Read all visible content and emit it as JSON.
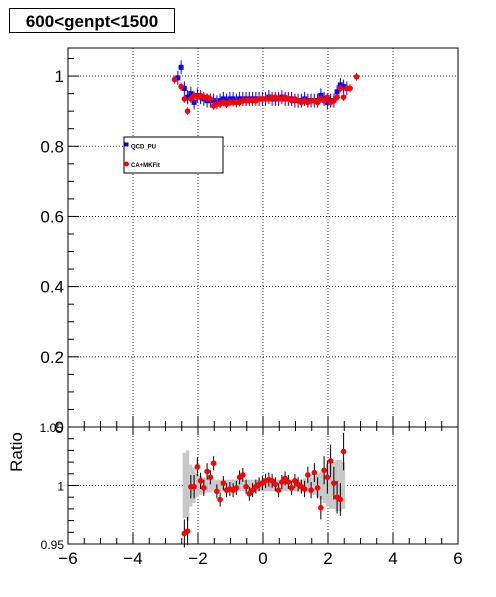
{
  "title": "600<genpt<1500",
  "legend": {
    "entries": [
      {
        "label": "QCD_PU",
        "color": "#0000ff",
        "marker": "square"
      },
      {
        "label": "CA+MKFit",
        "color": "#ff0000",
        "marker": "circle"
      }
    ]
  },
  "chart_data": [
    {
      "type": "scatter",
      "title": "600<genpt<1500",
      "xlabel": "",
      "ylabel": "",
      "xlim": [
        -6,
        6
      ],
      "ylim": [
        0,
        1.08
      ],
      "grid": true,
      "legend_placement": "upper-left",
      "yticks": [
        "0",
        "0.2",
        "0.4",
        "0.6",
        "0.8",
        "1"
      ],
      "series": [
        {
          "name": "QCD_PU",
          "color": "#0000ff",
          "marker": "square",
          "points": [
            {
              "x": -2.62,
              "y": 0.995
            },
            {
              "x": -2.52,
              "y": 1.025
            },
            {
              "x": -2.42,
              "y": 0.965
            },
            {
              "x": -2.32,
              "y": 0.94
            },
            {
              "x": -2.22,
              "y": 0.95
            },
            {
              "x": -2.12,
              "y": 0.925
            },
            {
              "x": -2.02,
              "y": 0.945
            },
            {
              "x": -1.92,
              "y": 0.94
            },
            {
              "x": -1.82,
              "y": 0.935
            },
            {
              "x": -1.72,
              "y": 0.93
            },
            {
              "x": -1.62,
              "y": 0.93
            },
            {
              "x": -1.52,
              "y": 0.93
            },
            {
              "x": -1.42,
              "y": 0.925
            },
            {
              "x": -1.32,
              "y": 0.93
            },
            {
              "x": -1.22,
              "y": 0.935
            },
            {
              "x": -1.12,
              "y": 0.93
            },
            {
              "x": -1.02,
              "y": 0.935
            },
            {
              "x": -0.92,
              "y": 0.935
            },
            {
              "x": -0.82,
              "y": 0.93
            },
            {
              "x": -0.72,
              "y": 0.935
            },
            {
              "x": -0.62,
              "y": 0.935
            },
            {
              "x": -0.52,
              "y": 0.935
            },
            {
              "x": -0.42,
              "y": 0.935
            },
            {
              "x": -0.32,
              "y": 0.935
            },
            {
              "x": -0.22,
              "y": 0.935
            },
            {
              "x": -0.12,
              "y": 0.935
            },
            {
              "x": -0.02,
              "y": 0.935
            },
            {
              "x": 0.08,
              "y": 0.935
            },
            {
              "x": 0.18,
              "y": 0.94
            },
            {
              "x": 0.28,
              "y": 0.935
            },
            {
              "x": 0.38,
              "y": 0.935
            },
            {
              "x": 0.48,
              "y": 0.935
            },
            {
              "x": 0.58,
              "y": 0.94
            },
            {
              "x": 0.68,
              "y": 0.935
            },
            {
              "x": 0.78,
              "y": 0.935
            },
            {
              "x": 0.88,
              "y": 0.935
            },
            {
              "x": 0.98,
              "y": 0.93
            },
            {
              "x": 1.08,
              "y": 0.93
            },
            {
              "x": 1.18,
              "y": 0.93
            },
            {
              "x": 1.28,
              "y": 0.935
            },
            {
              "x": 1.38,
              "y": 0.93
            },
            {
              "x": 1.48,
              "y": 0.93
            },
            {
              "x": 1.58,
              "y": 0.93
            },
            {
              "x": 1.68,
              "y": 0.93
            },
            {
              "x": 1.78,
              "y": 0.945
            },
            {
              "x": 1.88,
              "y": 0.935
            },
            {
              "x": 1.98,
              "y": 0.925
            },
            {
              "x": 2.08,
              "y": 0.93
            },
            {
              "x": 2.18,
              "y": 0.93
            },
            {
              "x": 2.28,
              "y": 0.955
            },
            {
              "x": 2.38,
              "y": 0.975
            },
            {
              "x": 2.48,
              "y": 0.97
            },
            {
              "x": 2.58,
              "y": 0.965
            }
          ]
        },
        {
          "name": "CA+MKFit",
          "color": "#ff0000",
          "marker": "circle",
          "points": [
            {
              "x": -2.72,
              "y": 0.99
            },
            {
              "x": -2.52,
              "y": 0.97
            },
            {
              "x": -2.42,
              "y": 0.935
            },
            {
              "x": -2.32,
              "y": 0.9
            },
            {
              "x": -2.22,
              "y": 0.935
            },
            {
              "x": -2.12,
              "y": 0.945
            },
            {
              "x": -2.02,
              "y": 0.94
            },
            {
              "x": -1.92,
              "y": 0.945
            },
            {
              "x": -1.82,
              "y": 0.94
            },
            {
              "x": -1.72,
              "y": 0.94
            },
            {
              "x": -1.62,
              "y": 0.935
            },
            {
              "x": -1.52,
              "y": 0.915
            },
            {
              "x": -1.42,
              "y": 0.92
            },
            {
              "x": -1.32,
              "y": 0.92
            },
            {
              "x": -1.22,
              "y": 0.925
            },
            {
              "x": -1.12,
              "y": 0.92
            },
            {
              "x": -1.02,
              "y": 0.925
            },
            {
              "x": -0.92,
              "y": 0.925
            },
            {
              "x": -0.82,
              "y": 0.925
            },
            {
              "x": -0.72,
              "y": 0.925
            },
            {
              "x": -0.62,
              "y": 0.93
            },
            {
              "x": -0.52,
              "y": 0.93
            },
            {
              "x": -0.42,
              "y": 0.93
            },
            {
              "x": -0.32,
              "y": 0.93
            },
            {
              "x": -0.22,
              "y": 0.93
            },
            {
              "x": -0.12,
              "y": 0.935
            },
            {
              "x": -0.02,
              "y": 0.935
            },
            {
              "x": 0.08,
              "y": 0.935
            },
            {
              "x": 0.18,
              "y": 0.935
            },
            {
              "x": 0.28,
              "y": 0.94
            },
            {
              "x": 0.38,
              "y": 0.94
            },
            {
              "x": 0.48,
              "y": 0.935
            },
            {
              "x": 0.58,
              "y": 0.935
            },
            {
              "x": 0.68,
              "y": 0.94
            },
            {
              "x": 0.78,
              "y": 0.935
            },
            {
              "x": 0.88,
              "y": 0.93
            },
            {
              "x": 0.98,
              "y": 0.935
            },
            {
              "x": 1.08,
              "y": 0.93
            },
            {
              "x": 1.18,
              "y": 0.925
            },
            {
              "x": 1.28,
              "y": 0.93
            },
            {
              "x": 1.38,
              "y": 0.925
            },
            {
              "x": 1.48,
              "y": 0.93
            },
            {
              "x": 1.58,
              "y": 0.93
            },
            {
              "x": 1.68,
              "y": 0.925
            },
            {
              "x": 1.78,
              "y": 0.935
            },
            {
              "x": 1.88,
              "y": 0.93
            },
            {
              "x": 1.98,
              "y": 0.94
            },
            {
              "x": 2.08,
              "y": 0.925
            },
            {
              "x": 2.18,
              "y": 0.93
            },
            {
              "x": 2.28,
              "y": 0.94
            },
            {
              "x": 2.38,
              "y": 0.965
            },
            {
              "x": 2.48,
              "y": 0.94
            },
            {
              "x": 2.58,
              "y": 0.965
            },
            {
              "x": 2.68,
              "y": 0.965
            },
            {
              "x": 2.88,
              "y": 0.998
            }
          ]
        }
      ]
    },
    {
      "type": "scatter",
      "title": "",
      "xlabel": "",
      "ylabel": "Ratio",
      "xlim": [
        -6,
        6
      ],
      "ylim": [
        0.95,
        1.05
      ],
      "grid": true,
      "xticks": [
        "−6",
        "−4",
        "−2",
        "0",
        "2",
        "4",
        "6"
      ],
      "yticks": [
        "0.95",
        "1"
      ],
      "y_top_label": "1.05",
      "band": {
        "color": "#c8c8c8"
      },
      "points": [
        {
          "x": -2.42,
          "y": 0.959,
          "err": 0.012,
          "band": 0.028
        },
        {
          "x": -2.32,
          "y": 0.961,
          "err": 0.012,
          "band": 0.03
        },
        {
          "x": -2.22,
          "y": 0.999,
          "err": 0.01,
          "band": 0.018
        },
        {
          "x": -2.12,
          "y": 0.999,
          "err": 0.01,
          "band": 0.015
        },
        {
          "x": -2.02,
          "y": 1.016,
          "err": 0.008,
          "band": 0.01
        },
        {
          "x": -1.92,
          "y": 1.004,
          "err": 0.007,
          "band": 0.008
        },
        {
          "x": -1.82,
          "y": 0.998,
          "err": 0.007,
          "band": 0.007
        },
        {
          "x": -1.72,
          "y": 1.012,
          "err": 0.007,
          "band": 0.006
        },
        {
          "x": -1.62,
          "y": 1.007,
          "err": 0.006,
          "band": 0.006
        },
        {
          "x": -1.52,
          "y": 1.019,
          "err": 0.006,
          "band": 0.005
        },
        {
          "x": -1.42,
          "y": 0.995,
          "err": 0.006,
          "band": 0.005
        },
        {
          "x": -1.32,
          "y": 0.988,
          "err": 0.006,
          "band": 0.005
        },
        {
          "x": -1.22,
          "y": 1.002,
          "err": 0.006,
          "band": 0.005
        },
        {
          "x": -1.12,
          "y": 0.996,
          "err": 0.006,
          "band": 0.005
        },
        {
          "x": -1.02,
          "y": 0.997,
          "err": 0.006,
          "band": 0.005
        },
        {
          "x": -0.92,
          "y": 0.996,
          "err": 0.006,
          "band": 0.005
        },
        {
          "x": -0.82,
          "y": 0.998,
          "err": 0.006,
          "band": 0.005
        },
        {
          "x": -0.72,
          "y": 1.007,
          "err": 0.006,
          "band": 0.005
        },
        {
          "x": -0.62,
          "y": 1.009,
          "err": 0.006,
          "band": 0.005
        },
        {
          "x": -0.52,
          "y": 0.999,
          "err": 0.006,
          "band": 0.005
        },
        {
          "x": -0.42,
          "y": 0.993,
          "err": 0.006,
          "band": 0.005
        },
        {
          "x": -0.32,
          "y": 0.996,
          "err": 0.006,
          "band": 0.005
        },
        {
          "x": -0.22,
          "y": 0.999,
          "err": 0.006,
          "band": 0.005
        },
        {
          "x": -0.12,
          "y": 1.001,
          "err": 0.006,
          "band": 0.005
        },
        {
          "x": -0.02,
          "y": 1.002,
          "err": 0.006,
          "band": 0.005
        },
        {
          "x": 0.08,
          "y": 1.004,
          "err": 0.006,
          "band": 0.005
        },
        {
          "x": 0.18,
          "y": 1.005,
          "err": 0.006,
          "band": 0.005
        },
        {
          "x": 0.28,
          "y": 1.004,
          "err": 0.006,
          "band": 0.005
        },
        {
          "x": 0.38,
          "y": 1.001,
          "err": 0.006,
          "band": 0.005
        },
        {
          "x": 0.48,
          "y": 0.996,
          "err": 0.006,
          "band": 0.005
        },
        {
          "x": 0.58,
          "y": 1.003,
          "err": 0.006,
          "band": 0.005
        },
        {
          "x": 0.68,
          "y": 1.006,
          "err": 0.006,
          "band": 0.005
        },
        {
          "x": 0.78,
          "y": 1.003,
          "err": 0.006,
          "band": 0.005
        },
        {
          "x": 0.88,
          "y": 0.998,
          "err": 0.006,
          "band": 0.005
        },
        {
          "x": 0.98,
          "y": 1.004,
          "err": 0.006,
          "band": 0.005
        },
        {
          "x": 1.08,
          "y": 1.001,
          "err": 0.006,
          "band": 0.005
        },
        {
          "x": 1.18,
          "y": 0.999,
          "err": 0.006,
          "band": 0.005
        },
        {
          "x": 1.28,
          "y": 0.997,
          "err": 0.007,
          "band": 0.006
        },
        {
          "x": 1.38,
          "y": 1.009,
          "err": 0.007,
          "band": 0.006
        },
        {
          "x": 1.48,
          "y": 0.996,
          "err": 0.007,
          "band": 0.007
        },
        {
          "x": 1.58,
          "y": 1.011,
          "err": 0.008,
          "band": 0.008
        },
        {
          "x": 1.68,
          "y": 0.998,
          "err": 0.009,
          "band": 0.01
        },
        {
          "x": 1.78,
          "y": 0.981,
          "err": 0.01,
          "band": 0.012
        },
        {
          "x": 1.88,
          "y": 1.013,
          "err": 0.012,
          "band": 0.015
        },
        {
          "x": 1.98,
          "y": 1.007,
          "err": 0.014,
          "band": 0.018
        },
        {
          "x": 2.08,
          "y": 1.021,
          "err": 0.014,
          "band": 0.02
        },
        {
          "x": 2.18,
          "y": 1.002,
          "err": 0.014,
          "band": 0.02
        },
        {
          "x": 2.28,
          "y": 0.99,
          "err": 0.014,
          "band": 0.022
        },
        {
          "x": 2.38,
          "y": 0.988,
          "err": 0.014,
          "band": 0.022
        },
        {
          "x": 2.48,
          "y": 1.029,
          "err": 0.016,
          "band": 0.02
        }
      ]
    }
  ]
}
